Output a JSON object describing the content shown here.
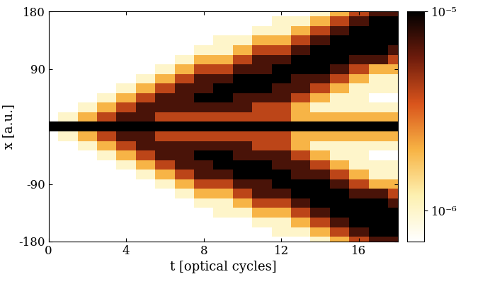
{
  "chart_data": {
    "type": "heatmap",
    "x_label": "t [optical cycles]",
    "y_label": "x [a.u.]",
    "xlim": [
      0,
      18
    ],
    "xticks": [
      0,
      4,
      8,
      12,
      16
    ],
    "ylim": [
      -180,
      180
    ],
    "yticks": [
      -180,
      -90,
      90,
      180
    ],
    "x": [
      0,
      1,
      2,
      3,
      4,
      5,
      6,
      7,
      8,
      9,
      10,
      11,
      12,
      13,
      14,
      15,
      16,
      17,
      18
    ],
    "y": [
      -180,
      -165,
      -150,
      -135,
      -120,
      -105,
      -90,
      -75,
      -60,
      -45,
      -30,
      -15,
      0,
      15,
      30,
      45,
      60,
      75,
      90,
      105,
      120,
      135,
      150,
      165,
      180
    ],
    "cells": [
      [
        7e-07,
        7e-07,
        7e-07,
        7e-07,
        7e-07,
        7e-07,
        7e-07,
        7e-07,
        7e-07,
        7e-07,
        7e-07,
        7e-07,
        7e-07,
        7e-07,
        1e-06,
        2e-06,
        4e-06,
        7e-06,
        7e-06
      ],
      [
        7e-07,
        7e-07,
        7e-07,
        7e-07,
        7e-07,
        7e-07,
        7e-07,
        7e-07,
        7e-07,
        7e-07,
        7e-07,
        7e-07,
        1e-06,
        1e-06,
        2e-06,
        4e-06,
        7e-06,
        1.2e-05,
        1.2e-05
      ],
      [
        7e-07,
        7e-07,
        7e-07,
        7e-07,
        7e-07,
        7e-07,
        7e-07,
        7e-07,
        7e-07,
        7e-07,
        7e-07,
        1e-06,
        1e-06,
        2e-06,
        4e-06,
        7e-06,
        1.2e-05,
        1.2e-05,
        1.2e-05
      ],
      [
        7e-07,
        7e-07,
        7e-07,
        7e-07,
        7e-07,
        7e-07,
        7e-07,
        7e-07,
        7e-07,
        1e-06,
        1e-06,
        2e-06,
        2e-06,
        4e-06,
        7e-06,
        1.2e-05,
        1.2e-05,
        1.2e-05,
        1.2e-05
      ],
      [
        7e-07,
        7e-07,
        7e-07,
        7e-07,
        7e-07,
        7e-07,
        7e-07,
        7e-07,
        1e-06,
        1e-06,
        2e-06,
        4e-06,
        4e-06,
        7e-06,
        1.2e-05,
        1.2e-05,
        1.2e-05,
        1.2e-05,
        7e-06
      ],
      [
        7e-07,
        7e-07,
        7e-07,
        7e-07,
        7e-07,
        7e-07,
        7e-07,
        1e-06,
        2e-06,
        2e-06,
        4e-06,
        7e-06,
        7e-06,
        1.2e-05,
        1.2e-05,
        1.2e-05,
        7e-06,
        7e-06,
        4e-06
      ],
      [
        7e-07,
        7e-07,
        7e-07,
        7e-07,
        7e-07,
        7e-07,
        1e-06,
        2e-06,
        4e-06,
        4e-06,
        7e-06,
        7e-06,
        1.2e-05,
        1.2e-05,
        1.2e-05,
        7e-06,
        4e-06,
        2e-06,
        2e-06
      ],
      [
        7e-07,
        7e-07,
        7e-07,
        7e-07,
        7e-07,
        1e-06,
        2e-06,
        4e-06,
        7e-06,
        7e-06,
        1.2e-05,
        1.2e-05,
        1.2e-05,
        7e-06,
        7e-06,
        4e-06,
        2e-06,
        1e-06,
        1e-06
      ],
      [
        7e-07,
        7e-07,
        7e-07,
        7e-07,
        1e-06,
        2e-06,
        4e-06,
        7e-06,
        7e-06,
        1.2e-05,
        1.2e-05,
        1.2e-05,
        7e-06,
        7e-06,
        4e-06,
        2e-06,
        1e-06,
        1e-06,
        1e-06
      ],
      [
        7e-07,
        7e-07,
        7e-07,
        1e-06,
        2e-06,
        4e-06,
        7e-06,
        7e-06,
        1.2e-05,
        1.2e-05,
        7e-06,
        7e-06,
        7e-06,
        4e-06,
        2e-06,
        1e-06,
        1e-06,
        7e-07,
        7e-07
      ],
      [
        7e-07,
        7e-07,
        1e-06,
        2e-06,
        4e-06,
        7e-06,
        7e-06,
        7e-06,
        7e-06,
        7e-06,
        7e-06,
        4e-06,
        4e-06,
        2e-06,
        1e-06,
        1e-06,
        1e-06,
        1e-06,
        1e-06
      ],
      [
        7e-07,
        1e-06,
        2e-06,
        4e-06,
        7e-06,
        7e-06,
        4e-06,
        4e-06,
        4e-06,
        4e-06,
        4e-06,
        4e-06,
        4e-06,
        2e-06,
        2e-06,
        2e-06,
        2e-06,
        2e-06,
        2e-06
      ],
      [
        1.2e-05,
        1.2e-05,
        1.2e-05,
        1.2e-05,
        1.2e-05,
        1.2e-05,
        1.2e-05,
        1.2e-05,
        1.2e-05,
        1.2e-05,
        1.2e-05,
        1.2e-05,
        1.2e-05,
        1.2e-05,
        1.2e-05,
        1.2e-05,
        1.2e-05,
        1.2e-05,
        1.2e-05
      ],
      [
        7e-07,
        1e-06,
        2e-06,
        4e-06,
        7e-06,
        7e-06,
        4e-06,
        4e-06,
        4e-06,
        4e-06,
        4e-06,
        4e-06,
        4e-06,
        2e-06,
        2e-06,
        2e-06,
        2e-06,
        2e-06,
        2e-06
      ],
      [
        7e-07,
        7e-07,
        1e-06,
        2e-06,
        4e-06,
        7e-06,
        7e-06,
        7e-06,
        7e-06,
        7e-06,
        7e-06,
        4e-06,
        4e-06,
        2e-06,
        1e-06,
        1e-06,
        1e-06,
        1e-06,
        1e-06
      ],
      [
        7e-07,
        7e-07,
        7e-07,
        1e-06,
        2e-06,
        4e-06,
        7e-06,
        7e-06,
        1.2e-05,
        1.2e-05,
        7e-06,
        7e-06,
        7e-06,
        4e-06,
        2e-06,
        1e-06,
        1e-06,
        7e-07,
        7e-07
      ],
      [
        7e-07,
        7e-07,
        7e-07,
        7e-07,
        1e-06,
        2e-06,
        4e-06,
        7e-06,
        7e-06,
        1.2e-05,
        1.2e-05,
        1.2e-05,
        7e-06,
        7e-06,
        4e-06,
        2e-06,
        1e-06,
        1e-06,
        1e-06
      ],
      [
        7e-07,
        7e-07,
        7e-07,
        7e-07,
        7e-07,
        1e-06,
        2e-06,
        4e-06,
        7e-06,
        7e-06,
        1.2e-05,
        1.2e-05,
        1.2e-05,
        7e-06,
        7e-06,
        4e-06,
        2e-06,
        1e-06,
        1e-06
      ],
      [
        7e-07,
        7e-07,
        7e-07,
        7e-07,
        7e-07,
        7e-07,
        1e-06,
        2e-06,
        4e-06,
        4e-06,
        7e-06,
        7e-06,
        1.2e-05,
        1.2e-05,
        1.2e-05,
        7e-06,
        4e-06,
        2e-06,
        2e-06
      ],
      [
        7e-07,
        7e-07,
        7e-07,
        7e-07,
        7e-07,
        7e-07,
        7e-07,
        1e-06,
        2e-06,
        2e-06,
        4e-06,
        7e-06,
        7e-06,
        1.2e-05,
        1.2e-05,
        1.2e-05,
        7e-06,
        7e-06,
        4e-06
      ],
      [
        7e-07,
        7e-07,
        7e-07,
        7e-07,
        7e-07,
        7e-07,
        7e-07,
        7e-07,
        1e-06,
        1e-06,
        2e-06,
        4e-06,
        4e-06,
        7e-06,
        1.2e-05,
        1.2e-05,
        1.2e-05,
        1.2e-05,
        7e-06
      ],
      [
        7e-07,
        7e-07,
        7e-07,
        7e-07,
        7e-07,
        7e-07,
        7e-07,
        7e-07,
        7e-07,
        1e-06,
        1e-06,
        2e-06,
        2e-06,
        4e-06,
        7e-06,
        1.2e-05,
        1.2e-05,
        1.2e-05,
        1.2e-05
      ],
      [
        7e-07,
        7e-07,
        7e-07,
        7e-07,
        7e-07,
        7e-07,
        7e-07,
        7e-07,
        7e-07,
        7e-07,
        7e-07,
        1e-06,
        1e-06,
        2e-06,
        4e-06,
        7e-06,
        1.2e-05,
        1.2e-05,
        1.2e-05
      ],
      [
        7e-07,
        7e-07,
        7e-07,
        7e-07,
        7e-07,
        7e-07,
        7e-07,
        7e-07,
        7e-07,
        7e-07,
        7e-07,
        7e-07,
        1e-06,
        1e-06,
        2e-06,
        4e-06,
        7e-06,
        1.2e-05,
        1.2e-05
      ],
      [
        7e-07,
        7e-07,
        7e-07,
        7e-07,
        7e-07,
        7e-07,
        7e-07,
        7e-07,
        7e-07,
        7e-07,
        7e-07,
        7e-07,
        7e-07,
        7e-07,
        1e-06,
        2e-06,
        4e-06,
        7e-06,
        7e-06
      ]
    ],
    "colorbar": {
      "range": [
        7e-07,
        1e-05
      ],
      "log": true,
      "ticks": [
        {
          "value": 1e-06,
          "label": "10⁻⁶"
        },
        {
          "value": 1e-05,
          "label": "10⁻⁵"
        }
      ]
    }
  }
}
